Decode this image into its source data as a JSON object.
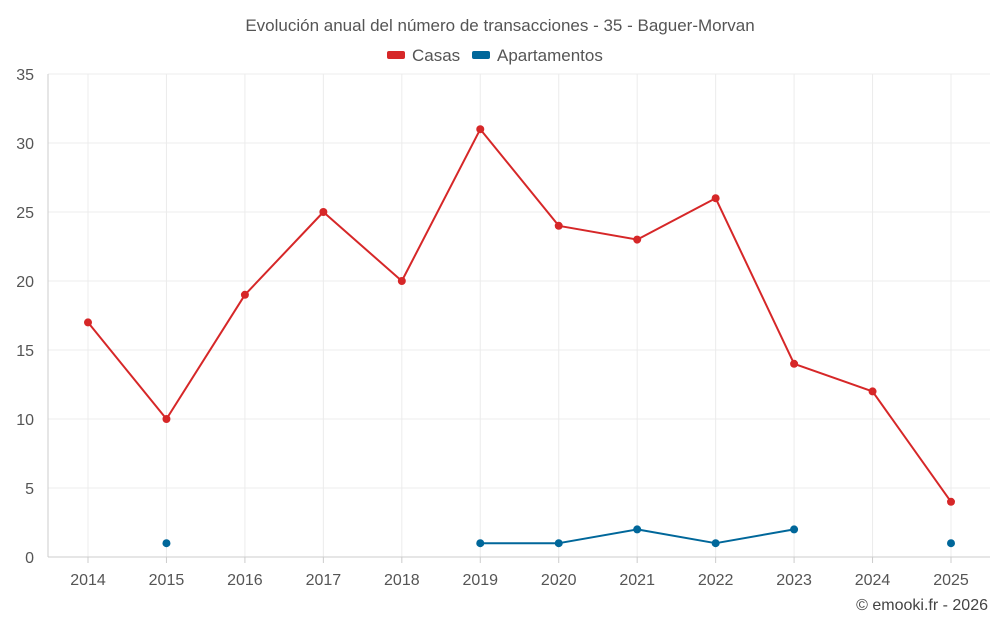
{
  "chart_data": {
    "type": "line",
    "title": "Evolución anual del número de transacciones - 35 - Baguer-Morvan",
    "xlabel": "",
    "ylabel": "",
    "categories": [
      "2014",
      "2015",
      "2016",
      "2017",
      "2018",
      "2019",
      "2020",
      "2021",
      "2022",
      "2023",
      "2024",
      "2025"
    ],
    "ylim": [
      0,
      35
    ],
    "yticks": [
      "0",
      "5",
      "10",
      "15",
      "20",
      "25",
      "30",
      "35"
    ],
    "grid": true,
    "legend_position": "top-center",
    "series": [
      {
        "name": "Casas",
        "color": "#d62728",
        "values": [
          17,
          10,
          19,
          25,
          20,
          31,
          24,
          23,
          26,
          14,
          12,
          4
        ]
      },
      {
        "name": "Apartamentos",
        "color": "#00679a",
        "values": [
          null,
          1,
          null,
          null,
          null,
          1,
          1,
          2,
          1,
          2,
          null,
          1
        ]
      }
    ]
  },
  "credit": "© emooki.fr - 2026"
}
